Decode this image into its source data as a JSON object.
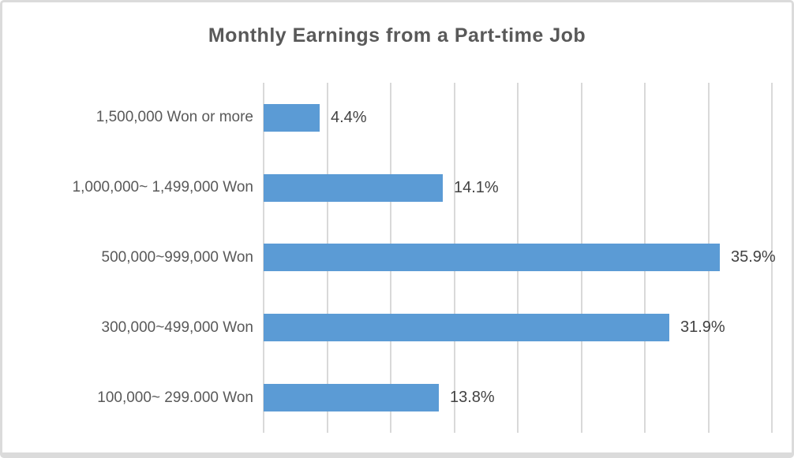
{
  "chart_data": {
    "type": "bar",
    "orientation": "horizontal",
    "title": "Monthly Earnings from a Part-time Job",
    "categories": [
      "1,500,000 Won or more",
      "1,000,000~ 1,499,000 Won",
      "500,000~999,000 Won",
      "300,000~499,000 Won",
      "100,000~ 299.000 Won"
    ],
    "values": [
      4.4,
      14.1,
      35.9,
      31.9,
      13.8
    ],
    "value_labels": [
      "4.4%",
      "14.1%",
      "35.9%",
      "31.9%",
      "13.8%"
    ],
    "xlabel": "",
    "ylabel": "",
    "xlim": [
      0,
      40
    ],
    "gridline_step": 5,
    "grid": true,
    "legend": "none",
    "colors": {
      "bar": "#5b9bd5",
      "gridline": "#d9d9d9",
      "title": "#595959",
      "category_label": "#595959",
      "value_label": "#424242",
      "frame_border": "#dbdbdb",
      "background": "#ffffff"
    }
  }
}
